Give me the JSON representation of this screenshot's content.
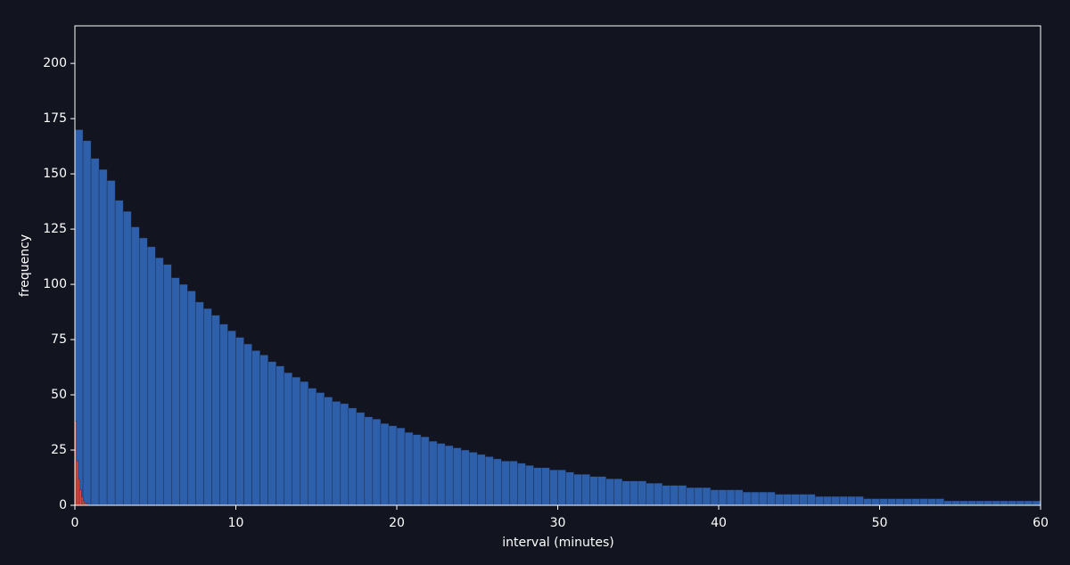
{
  "chart_data": {
    "type": "histogram",
    "xlabel": "interval (minutes)",
    "ylabel": "frequency",
    "xlim": [
      0,
      60
    ],
    "ylim": [
      0,
      217
    ],
    "xticks": [
      0,
      10,
      20,
      30,
      40,
      50,
      60
    ],
    "yticks": [
      0,
      25,
      50,
      75,
      100,
      125,
      150,
      175,
      200
    ],
    "series": [
      {
        "color": "#2e5fab",
        "bins": [
          0,
          0.5,
          1,
          1.5,
          2,
          2.5,
          3,
          3.5,
          4,
          4.5,
          5,
          5.5,
          6,
          6.5,
          7,
          7.5,
          8,
          8.5,
          9,
          9.5,
          10,
          10.5,
          11,
          11.5,
          12,
          12.5,
          13,
          13.5,
          14,
          14.5,
          15,
          15.5,
          16,
          16.5,
          17,
          17.5,
          18,
          18.5,
          19,
          19.5,
          20,
          20.5,
          21,
          21.5,
          22,
          22.5,
          23,
          23.5,
          24,
          24.5,
          25,
          25.5,
          26,
          26.5,
          27,
          27.5,
          28,
          28.5,
          29,
          29.5,
          30,
          30.5,
          31,
          31.5,
          32,
          32.5,
          33,
          33.5,
          34,
          34.5,
          35,
          35.5,
          36,
          36.5,
          37,
          37.5,
          38,
          38.5,
          39,
          39.5,
          40,
          40.5,
          41,
          41.5,
          42,
          42.5,
          43,
          43.5,
          44,
          44.5,
          45,
          45.5,
          46,
          46.5,
          47,
          47.5,
          48,
          48.5,
          49,
          49.5,
          50,
          50.5,
          51,
          51.5,
          52,
          52.5,
          53,
          53.5,
          54,
          54.5,
          55,
          55.5,
          56,
          56.5,
          57,
          57.5,
          58,
          58.5,
          59,
          59.5,
          60
        ],
        "values": [
          170,
          165,
          157,
          152,
          147,
          138,
          133,
          126,
          121,
          117,
          112,
          109,
          103,
          100,
          97,
          92,
          89,
          86,
          82,
          79,
          76,
          73,
          70,
          68,
          65,
          63,
          60,
          58,
          56,
          53,
          51,
          49,
          47,
          46,
          44,
          42,
          40,
          39,
          37,
          36,
          35,
          33,
          32,
          31,
          29,
          28,
          27,
          26,
          25,
          24,
          23,
          22,
          21,
          20,
          20,
          19,
          18,
          17,
          17,
          16,
          16,
          15,
          14,
          14,
          13,
          13,
          12,
          12,
          11,
          11,
          11,
          10,
          10,
          9,
          9,
          9,
          8,
          8,
          8,
          7,
          7,
          7,
          7,
          6,
          6,
          6,
          6,
          5,
          5,
          5,
          5,
          5,
          4,
          4,
          4,
          4,
          4,
          4,
          3,
          3,
          3,
          3,
          3,
          3,
          3,
          3,
          3,
          3,
          2,
          2,
          2,
          2,
          2,
          2,
          2,
          2,
          2,
          2,
          2,
          2
        ]
      },
      {
        "color": "#d9534f",
        "bins": [
          0,
          0.1,
          0.2,
          0.3,
          0.4,
          0.5,
          0.6,
          0.7,
          0.8,
          0.9,
          1
        ],
        "values": [
          38,
          20,
          12,
          7,
          4,
          2,
          1,
          1,
          0,
          0
        ]
      }
    ]
  }
}
